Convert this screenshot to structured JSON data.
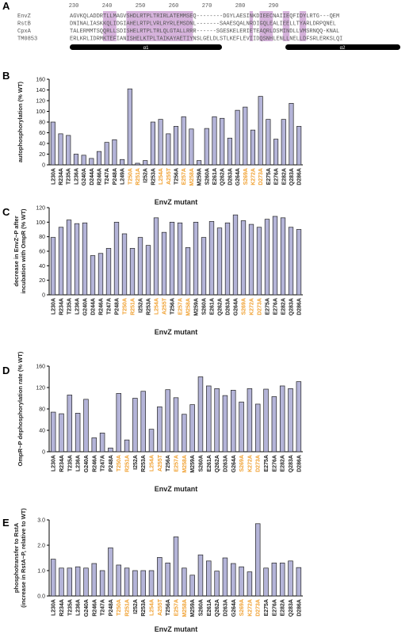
{
  "alignment": {
    "panel": "A",
    "ruler": [
      230,
      240,
      250,
      260,
      270,
      280,
      290
    ],
    "rows": [
      {
        "name": "EnvZ",
        "seq": "AGVKQLADDRTLLMAGVSHDLRTPLTRIRLATEMMSEQ--------DGYLAESINKDIEECNAIIEQFIDYLRTG---QEM"
      },
      {
        "name": "RstB",
        "seq": "DNINALIASKKQLIDGIAHELRTPLVRLRYRLEMSDNL-------SAAESQALNRDIGQLEALIEELLTYARLDRPQNEL"
      },
      {
        "name": "CpxA",
        "seq": "TALERMMTSQQRLLSDISHELRTPLTRLQLGTALLRRR------SGESKELERIETEAQRLDSMINDLLVMSRNQQ-KNAL"
      },
      {
        "name": "TM0853",
        "seq": "ERLKRLIDRMKTEFIANISHELKTPLTAIKAYAETIYNSLGELDLSTLKEFLEVIIDQSNHLENLLNELLDFSRLERKSLQI"
      }
    ],
    "helices": [
      "α1",
      "α2"
    ]
  },
  "chart_data": [
    {
      "type": "bar",
      "panel": "B",
      "ylabel": [
        "autophosphorylation (% WT)"
      ],
      "xlabel": "EnvZ mutant",
      "categories": [
        "L230A",
        "R234A",
        "T235A",
        "L236A",
        "G240A",
        "D244A",
        "R246A",
        "T247A",
        "P248A",
        "L249A",
        "T250A",
        "R251A",
        "I252A",
        "R253A",
        "L254A",
        "A255T",
        "T256A",
        "E257A",
        "M258A",
        "M259A",
        "S260A",
        "E261A",
        "Q262A",
        "D263A",
        "G264A",
        "S269A",
        "K272A",
        "D273A",
        "E275A",
        "E276A",
        "E282A",
        "Q283A",
        "D286A"
      ],
      "values": [
        80,
        58,
        55,
        20,
        18,
        12,
        25,
        42,
        47,
        10,
        142,
        3,
        8,
        80,
        85,
        58,
        72,
        90,
        67,
        8,
        68,
        90,
        87,
        50,
        102,
        108,
        65,
        128,
        85,
        48,
        85,
        115,
        72
      ],
      "highlighted": [
        10,
        11,
        14,
        15,
        17,
        18,
        25,
        26,
        27
      ],
      "highlight_color": "#f0a030",
      "color": "#b4b4d8",
      "ylim": [
        0,
        160
      ],
      "yticks": [
        0,
        20,
        40,
        60,
        80,
        100,
        120,
        140,
        160
      ]
    },
    {
      "type": "bar",
      "panel": "C",
      "ylabel": [
        "decrease in EnvZ~P after",
        "incubation with OmpR (% WT)"
      ],
      "xlabel": "EnvZ mutant",
      "categories": [
        "L230A",
        "R234A",
        "T235A",
        "L236A",
        "G240A",
        "D244A",
        "R246A",
        "T247A",
        "P248A",
        "T250A",
        "R251A",
        "I252A",
        "R253A",
        "L254A",
        "A255T",
        "T256A",
        "E257A",
        "M258A",
        "M259A",
        "S260A",
        "E261A",
        "Q262A",
        "D263A",
        "G264A",
        "S269A",
        "K272A",
        "D273A",
        "E275A",
        "E276A",
        "E282A",
        "Q283A",
        "D286A"
      ],
      "values": [
        79,
        93,
        103,
        98,
        99,
        54,
        57,
        64,
        100,
        84,
        64,
        79,
        68,
        106,
        86,
        100,
        99,
        65,
        100,
        79,
        101,
        92,
        99,
        110,
        102,
        97,
        93,
        104,
        108,
        106,
        93,
        90
      ],
      "highlighted": [
        9,
        10,
        13,
        14,
        16,
        17,
        24,
        25,
        26
      ],
      "highlight_color": "#f0a030",
      "color": "#b4b4d8",
      "ylim": [
        0,
        120
      ],
      "yticks": [
        0,
        20,
        40,
        60,
        80,
        100,
        120
      ]
    },
    {
      "type": "bar",
      "panel": "D",
      "ylabel": [
        "OmpR~P dephosphorylation rate (% WT)"
      ],
      "xlabel": "EnvZ mutant",
      "categories": [
        "L230A",
        "R234A",
        "T235A",
        "L236A",
        "G240A",
        "R246A",
        "T247A",
        "P248A",
        "T250A",
        "R251A",
        "I252A",
        "R253A",
        "L254A",
        "A255T",
        "T256A",
        "E257A",
        "M258A",
        "M259A",
        "S260A",
        "E261A",
        "Q262A",
        "D263A",
        "G264A",
        "S269A",
        "K272A",
        "D273A",
        "E275A",
        "E276A",
        "E282A",
        "Q283A",
        "D286A"
      ],
      "values": [
        74,
        71,
        106,
        72,
        98,
        26,
        35,
        7,
        109,
        22,
        100,
        113,
        42,
        84,
        116,
        101,
        70,
        88,
        140,
        123,
        118,
        105,
        115,
        93,
        118,
        89,
        117,
        103,
        123,
        118,
        131
      ],
      "highlighted": [
        8,
        9,
        12,
        13,
        15,
        16,
        23,
        24,
        25
      ],
      "highlight_color": "#f0a030",
      "color": "#b4b4d8",
      "ylim": [
        0,
        160
      ],
      "yticks": [
        0,
        40,
        80,
        120,
        160
      ]
    },
    {
      "type": "bar",
      "panel": "E",
      "ylabel": [
        "phosphotransfer to RstA",
        "(increase in RstA~P, relative to WT)"
      ],
      "xlabel": "EnvZ mutant",
      "categories": [
        "L230A",
        "R234A",
        "T235A",
        "L236A",
        "G240A",
        "R246A",
        "T247A",
        "P248A",
        "T250A",
        "R251A",
        "I252A",
        "R253A",
        "L254A",
        "A255T",
        "T256A",
        "E257A",
        "M258A",
        "M259A",
        "S260A",
        "E261A",
        "Q262A",
        "D263A",
        "G264A",
        "S269A",
        "K272A",
        "D273A",
        "E275A",
        "E276A",
        "E282A",
        "Q283A",
        "D286A"
      ],
      "values": [
        1.45,
        1.1,
        1.1,
        1.15,
        1.1,
        1.28,
        1.0,
        1.9,
        1.22,
        1.1,
        1.0,
        1.0,
        1.0,
        1.52,
        1.3,
        2.33,
        1.1,
        0.82,
        1.62,
        1.38,
        0.98,
        1.5,
        1.28,
        1.15,
        0.95,
        2.85,
        1.1,
        1.3,
        1.3,
        1.38,
        1.12
      ],
      "highlighted": [
        8,
        9,
        12,
        13,
        15,
        16,
        23,
        24,
        25
      ],
      "highlight_color": "#f0a030",
      "color": "#b4b4d8",
      "ylim": [
        0,
        3
      ],
      "yticks": [
        {
          "value": 0,
          "label": "0.0"
        },
        {
          "value": 1,
          "label": "1.0"
        },
        {
          "value": 2,
          "label": "2.0"
        },
        {
          "value": 3,
          "label": "3.0"
        }
      ]
    }
  ]
}
